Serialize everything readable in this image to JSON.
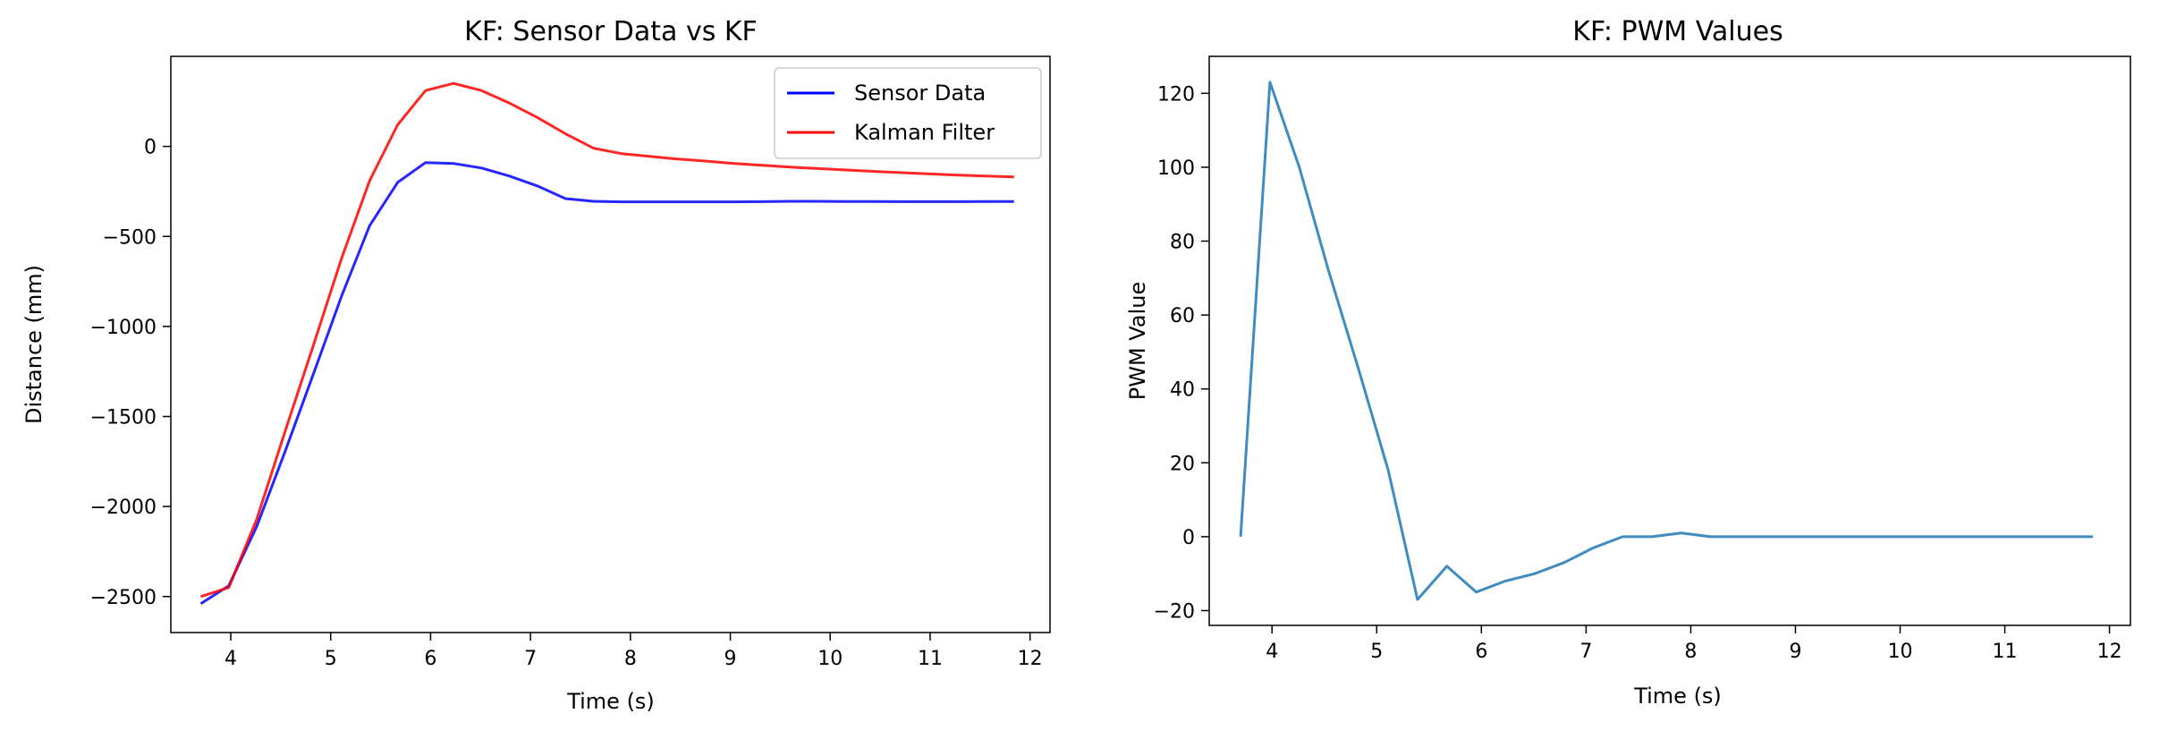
{
  "chart_data": [
    {
      "type": "line",
      "title": "KF: Sensor Data vs KF",
      "xlabel": "Time (s)",
      "ylabel": "Distance (mm)",
      "xlim": [
        3.4,
        12.2
      ],
      "ylim": [
        -2700,
        500
      ],
      "xticks": [
        4,
        5,
        6,
        7,
        8,
        9,
        10,
        11,
        12
      ],
      "yticks": [
        -2500,
        -2000,
        -1500,
        -1000,
        -500,
        0
      ],
      "legend": {
        "position": "top-right"
      },
      "grid": false,
      "x": [
        3.7,
        3.98,
        4.26,
        4.54,
        4.83,
        5.11,
        5.39,
        5.67,
        5.95,
        6.23,
        6.51,
        6.79,
        7.07,
        7.35,
        7.63,
        7.91,
        8.19,
        8.47,
        8.76,
        9.04,
        9.32,
        9.6,
        9.88,
        10.16,
        10.44,
        10.72,
        11.0,
        11.28,
        11.56,
        11.84
      ],
      "series": [
        {
          "name": "Sensor Data",
          "color": "#0000ff",
          "values": [
            -2540,
            -2440,
            -2110,
            -1700,
            -1260,
            -830,
            -440,
            -200,
            -90,
            -95,
            -120,
            -165,
            -220,
            -290,
            -305,
            -308,
            -308,
            -308,
            -308,
            -308,
            -307,
            -305,
            -305,
            -306,
            -306,
            -307,
            -307,
            -307,
            -306,
            -306
          ]
        },
        {
          "name": "Kalman Filter",
          "color": "#ff0000",
          "values": [
            -2500,
            -2450,
            -2070,
            -1590,
            -1100,
            -620,
            -190,
            120,
            310,
            350,
            310,
            240,
            160,
            70,
            -10,
            -40,
            -55,
            -70,
            -82,
            -95,
            -105,
            -115,
            -123,
            -131,
            -139,
            -146,
            -153,
            -160,
            -165,
            -170
          ]
        }
      ]
    },
    {
      "type": "line",
      "title": "KF: PWM Values",
      "xlabel": "Time (s)",
      "ylabel": "PWM Value",
      "xlim": [
        3.4,
        12.2
      ],
      "ylim": [
        -24,
        130
      ],
      "xticks": [
        4,
        5,
        6,
        7,
        8,
        9,
        10,
        11,
        12
      ],
      "yticks": [
        -20,
        0,
        20,
        40,
        60,
        80,
        100,
        120
      ],
      "grid": false,
      "x": [
        3.7,
        3.98,
        4.26,
        4.54,
        4.83,
        5.11,
        5.39,
        5.67,
        5.95,
        6.23,
        6.51,
        6.79,
        7.07,
        7.35,
        7.63,
        7.91,
        8.19,
        8.47,
        8.76,
        9.04,
        9.32,
        9.6,
        9.88,
        10.16,
        10.44,
        10.72,
        11.0,
        11.28,
        11.56,
        11.84
      ],
      "series": [
        {
          "color": "#1f77b4",
          "values": [
            0,
            123,
            100,
            72,
            45,
            18,
            -17,
            -8,
            -15,
            -12,
            -10,
            -7,
            -3,
            0,
            0,
            1,
            0,
            0,
            0,
            0,
            0,
            0,
            0,
            0,
            0,
            0,
            0,
            0,
            0,
            0
          ]
        }
      ]
    }
  ]
}
